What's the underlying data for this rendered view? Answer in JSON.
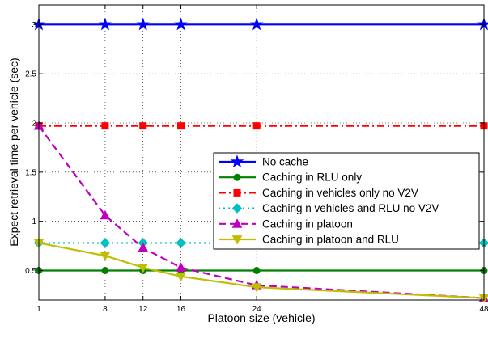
{
  "chart_data": {
    "type": "line",
    "title": "",
    "xlabel": "Platoon size (vehicle)",
    "ylabel": "Expect retrieval time per vehicle (sec)",
    "xlim": [
      1,
      48
    ],
    "ylim": [
      0.2,
      3.2
    ],
    "x_ticks": [
      1,
      8,
      12,
      16,
      24,
      48
    ],
    "y_ticks": [
      0.5,
      1,
      1.5,
      2,
      2.5,
      3
    ],
    "y_tick_labels": [
      "0.5",
      "1",
      "1.5",
      "2",
      "2.5",
      "3"
    ],
    "grid": true,
    "legend_position": "center-right",
    "series": [
      {
        "name": "No cache",
        "color": "#0000ff",
        "dash": "solid",
        "marker": "star",
        "x": [
          1,
          8,
          12,
          16,
          24,
          48
        ],
        "y": [
          3,
          3,
          3,
          3,
          3,
          3
        ]
      },
      {
        "name": "Caching in RLU only",
        "color": "#008000",
        "dash": "solid",
        "marker": "circle",
        "x": [
          1,
          8,
          12,
          16,
          24,
          48
        ],
        "y": [
          0.5,
          0.5,
          0.5,
          0.5,
          0.5,
          0.5
        ]
      },
      {
        "name": "Caching in vehicles only no  V2V",
        "color": "#ff0000",
        "dash": "dashdot",
        "marker": "square",
        "x": [
          1,
          8,
          12,
          16,
          24,
          48
        ],
        "y": [
          1.97,
          1.97,
          1.97,
          1.97,
          1.97,
          1.97
        ]
      },
      {
        "name": "Caching n vehicles and RLU no V2V",
        "color": "#00c0c0",
        "dash": "dotted",
        "marker": "diamond",
        "x": [
          1,
          8,
          12,
          16,
          24,
          48
        ],
        "y": [
          0.78,
          0.78,
          0.78,
          0.78,
          0.78,
          0.78
        ]
      },
      {
        "name": "Caching in platoon",
        "color": "#bf00bf",
        "dash": "dashed",
        "marker": "triangle-up",
        "x": [
          1,
          8,
          12,
          16,
          24,
          48
        ],
        "y": [
          1.97,
          1.06,
          0.73,
          0.53,
          0.35,
          0.22
        ]
      },
      {
        "name": "Caching in platoon and RLU",
        "color": "#bfbf00",
        "dash": "solid",
        "marker": "triangle-down",
        "x": [
          1,
          8,
          12,
          16,
          24,
          48
        ],
        "y": [
          0.78,
          0.65,
          0.53,
          0.44,
          0.33,
          0.22
        ]
      }
    ]
  }
}
